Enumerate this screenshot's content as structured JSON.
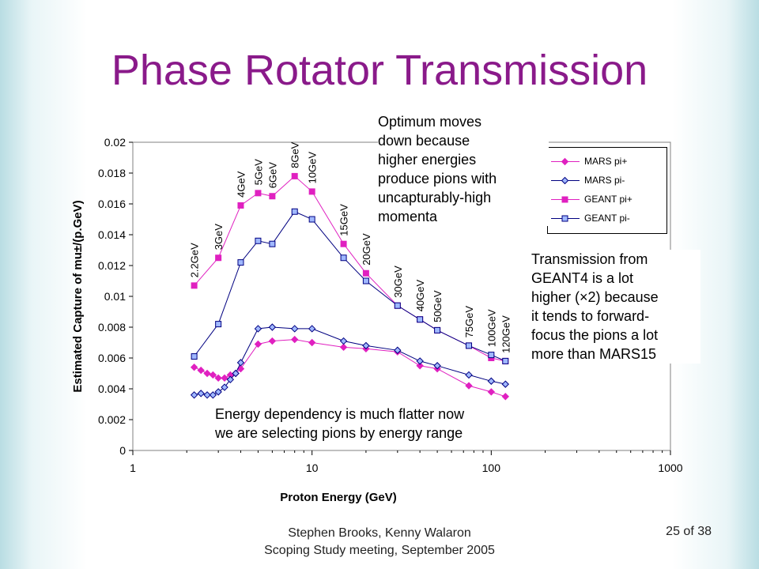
{
  "slide": {
    "title": "Phase Rotator Transmission",
    "footer_line1": "Stephen Brooks, Kenny Walaron",
    "footer_line2": "Scoping Study meeting, September 2005",
    "slide_number": "25 of 38"
  },
  "callouts": {
    "optimum": "Optimum moves\ndown because\nhigher energies\nproduce pions with\nuncapturably-high\nmomenta",
    "geant4": "Transmission from\nGEANT4 is a lot\nhigher (×2) because\nit tends to forward-\nfocus the pions a lot\nmore than MARS15",
    "energy": "Energy dependency is much flatter now\nwe are selecting pions by energy range"
  },
  "chart_data": {
    "type": "line",
    "xlabel": "Proton Energy (GeV)",
    "ylabel": "Estimated Capture of mu±/(p.GeV)",
    "xscale": "log",
    "xlim": [
      1,
      1000
    ],
    "ylim": [
      0,
      0.02
    ],
    "xticks": [
      "1",
      "10",
      "100",
      "1000"
    ],
    "yticks": [
      "0",
      "0.002",
      "0.004",
      "0.006",
      "0.008",
      "0.01",
      "0.012",
      "0.014",
      "0.016",
      "0.018",
      "0.02"
    ],
    "legend_position": "top-right",
    "energy_labels": [
      {
        "text": "2.2GeV",
        "x": 2.2
      },
      {
        "text": "3GeV",
        "x": 3
      },
      {
        "text": "4GeV",
        "x": 4
      },
      {
        "text": "5GeV",
        "x": 5
      },
      {
        "text": "6GeV",
        "x": 6
      },
      {
        "text": "8GeV",
        "x": 8
      },
      {
        "text": "10GeV",
        "x": 10
      },
      {
        "text": "15GeV",
        "x": 15
      },
      {
        "text": "20GeV",
        "x": 20
      },
      {
        "text": "30GeV",
        "x": 30
      },
      {
        "text": "40GeV",
        "x": 40
      },
      {
        "text": "50GeV",
        "x": 50
      },
      {
        "text": "75GeV",
        "x": 75
      },
      {
        "text": "100GeV",
        "x": 100
      },
      {
        "text": "120GeV",
        "x": 120
      }
    ],
    "series": [
      {
        "name": "MARS pi+",
        "color": "#e020c0",
        "marker": "diamond",
        "marker_fill": "#e020c0",
        "x": [
          2.2,
          2.4,
          2.6,
          2.8,
          3.0,
          3.25,
          3.5,
          3.75,
          4,
          5,
          6,
          8,
          10,
          15,
          20,
          30,
          40,
          50,
          75,
          100,
          120
        ],
        "y": [
          0.0054,
          0.0052,
          0.005,
          0.0049,
          0.0047,
          0.0047,
          0.0049,
          0.005,
          0.0053,
          0.0069,
          0.0071,
          0.0072,
          0.007,
          0.0067,
          0.0066,
          0.0064,
          0.0055,
          0.0053,
          0.0042,
          0.0038,
          0.0035
        ]
      },
      {
        "name": "MARS pi-",
        "color": "#000080",
        "marker": "diamond",
        "marker_fill": "#a0b8ff",
        "x": [
          2.2,
          2.4,
          2.6,
          2.8,
          3.0,
          3.25,
          3.5,
          3.75,
          4,
          5,
          6,
          8,
          10,
          15,
          20,
          30,
          40,
          50,
          75,
          100,
          120
        ],
        "y": [
          0.0036,
          0.0037,
          0.0036,
          0.0036,
          0.0038,
          0.0041,
          0.0046,
          0.005,
          0.0057,
          0.0079,
          0.008,
          0.0079,
          0.0079,
          0.0071,
          0.0068,
          0.0065,
          0.0058,
          0.0055,
          0.0049,
          0.0045,
          0.0043
        ]
      },
      {
        "name": "GEANT pi+",
        "color": "#e020c0",
        "marker": "square",
        "marker_fill": "#e020c0",
        "x": [
          2.2,
          3,
          4,
          5,
          6,
          8,
          10,
          15,
          20,
          30,
          40,
          50,
          75,
          100,
          120
        ],
        "y": [
          0.0107,
          0.0125,
          0.0159,
          0.0167,
          0.0165,
          0.0178,
          0.0168,
          0.0134,
          0.0115,
          0.0094,
          0.0085,
          0.0078,
          0.0068,
          0.006,
          0.0058
        ]
      },
      {
        "name": "GEANT pi-",
        "color": "#000080",
        "marker": "square",
        "marker_fill": "#a0b8ff",
        "x": [
          2.2,
          3,
          4,
          5,
          6,
          8,
          10,
          15,
          20,
          30,
          40,
          50,
          75,
          100,
          120
        ],
        "y": [
          0.0061,
          0.0082,
          0.0122,
          0.0136,
          0.0134,
          0.0155,
          0.015,
          0.0125,
          0.011,
          0.0094,
          0.0085,
          0.0078,
          0.0068,
          0.0062,
          0.0058
        ]
      }
    ]
  }
}
